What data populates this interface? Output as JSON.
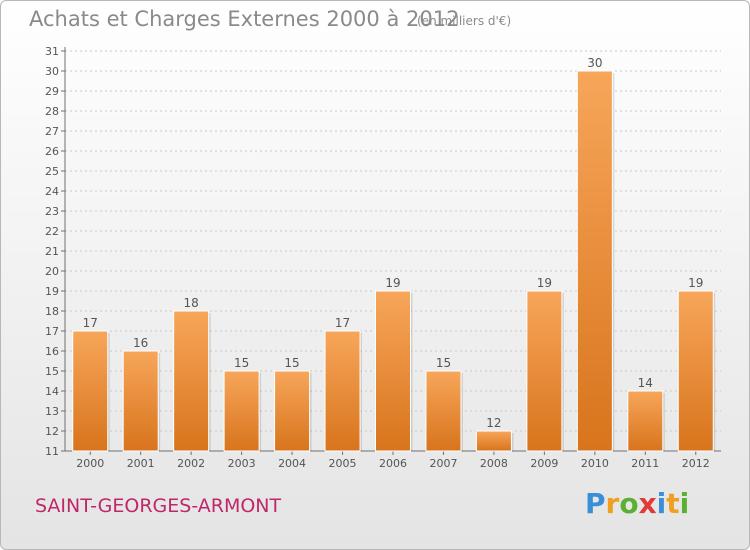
{
  "chart_data": {
    "type": "bar",
    "title": "Achats et Charges Externes 2000 à 2012",
    "unit_label": "(en milliers d'€)",
    "categories": [
      "2000",
      "2001",
      "2002",
      "2003",
      "2004",
      "2005",
      "2006",
      "2007",
      "2008",
      "2009",
      "2010",
      "2011",
      "2012"
    ],
    "values": [
      17,
      16,
      18,
      15,
      15,
      17,
      19,
      15,
      12,
      19,
      30,
      14,
      19
    ],
    "xlabel": "",
    "ylabel": "",
    "ylim": [
      11,
      31
    ],
    "y_ticks": [
      11,
      12,
      13,
      14,
      15,
      16,
      17,
      18,
      19,
      20,
      21,
      22,
      23,
      24,
      25,
      26,
      27,
      28,
      29,
      30,
      31
    ],
    "grid": true,
    "bar_color": "#f0963c"
  },
  "commune": "SAINT-GEORGES-ARMONT",
  "logo": {
    "text": "Proxiti",
    "letters": [
      {
        "ch": "P",
        "color": "#3a8fd8"
      },
      {
        "ch": "r",
        "color": "#f0a020"
      },
      {
        "ch": "o",
        "color": "#5ab030"
      },
      {
        "ch": "x",
        "color": "#e03a3a"
      },
      {
        "ch": "i",
        "color": "#3a8fd8"
      },
      {
        "ch": "t",
        "color": "#f0a020"
      },
      {
        "ch": "i",
        "color": "#5ab030"
      }
    ]
  }
}
